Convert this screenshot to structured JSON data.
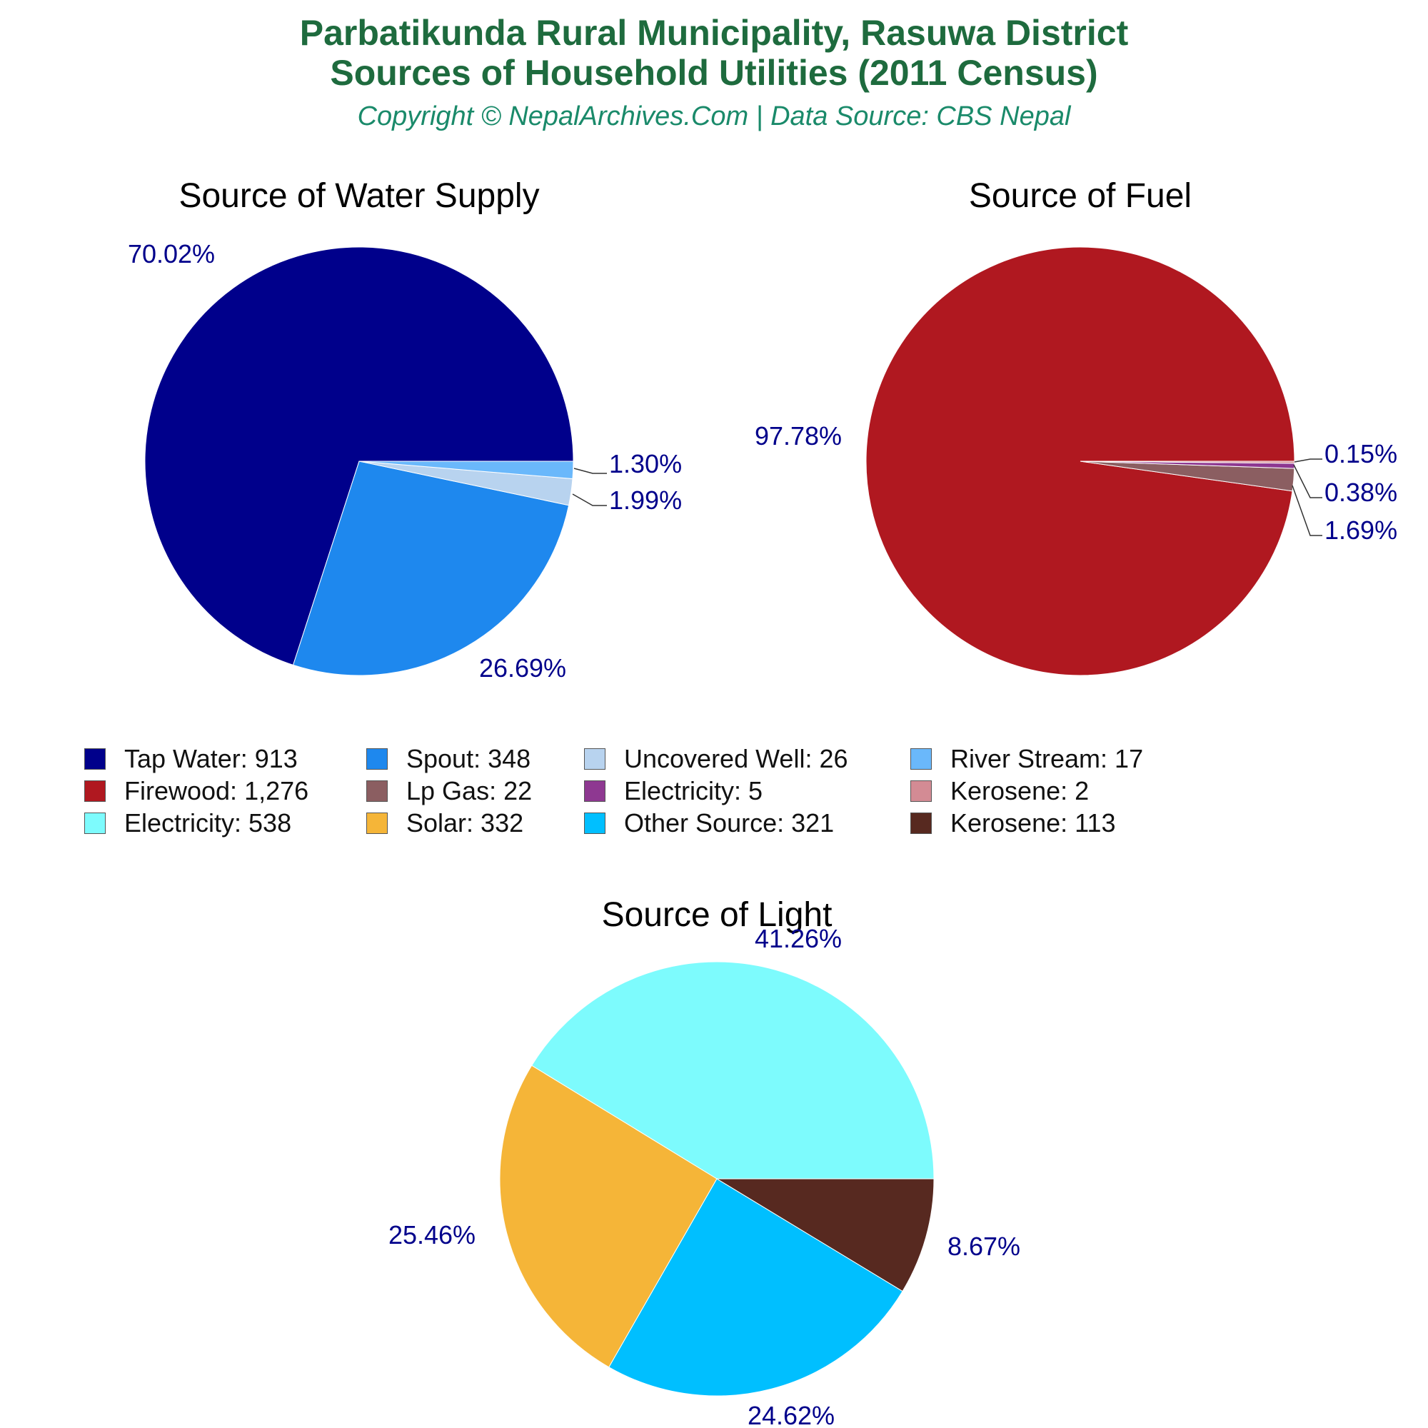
{
  "header": {
    "title_line1": "Parbatikunda Rural Municipality, Rasuwa District",
    "title_line2": "Sources of Household Utilities (2011 Census)",
    "subtitle": "Copyright © NepalArchives.Com | Data Source: CBS Nepal"
  },
  "chart_data": [
    {
      "type": "pie",
      "title": "Source of Water Supply",
      "slices": [
        {
          "label": "Tap Water",
          "value": 913,
          "percent": "70.02%",
          "color": "#00008b"
        },
        {
          "label": "Spout",
          "value": 348,
          "percent": "26.69%",
          "color": "#1e88ee"
        },
        {
          "label": "Uncovered Well",
          "value": 26,
          "percent": "1.99%",
          "color": "#b8d3ef"
        },
        {
          "label": "River Stream",
          "value": 17,
          "percent": "1.30%",
          "color": "#6ab8fb"
        }
      ]
    },
    {
      "type": "pie",
      "title": "Source of Fuel",
      "slices": [
        {
          "label": "Firewood",
          "value": 1276,
          "percent": "97.78%",
          "color": "#b01820"
        },
        {
          "label": "Lp Gas",
          "value": 22,
          "percent": "1.69%",
          "color": "#8b5e61"
        },
        {
          "label": "Electricity",
          "value": 5,
          "percent": "0.38%",
          "color": "#8e3891"
        },
        {
          "label": "Kerosene",
          "value": 2,
          "percent": "0.15%",
          "color": "#d38b94"
        }
      ]
    },
    {
      "type": "pie",
      "title": "Source of Light",
      "slices": [
        {
          "label": "Electricity",
          "value": 538,
          "percent": "41.26%",
          "color": "#7dfbfd"
        },
        {
          "label": "Solar",
          "value": 332,
          "percent": "25.46%",
          "color": "#f5b538"
        },
        {
          "label": "Other Source",
          "value": 321,
          "percent": "24.62%",
          "color": "#00bfff"
        },
        {
          "label": "Kerosene",
          "value": 113,
          "percent": "8.67%",
          "color": "#572920"
        }
      ]
    }
  ],
  "legend": [
    {
      "text": "Tap Water: 913",
      "color": "#00008b"
    },
    {
      "text": "Spout: 348",
      "color": "#1e88ee"
    },
    {
      "text": "Uncovered Well: 26",
      "color": "#b8d3ef"
    },
    {
      "text": "River Stream: 17",
      "color": "#6ab8fb"
    },
    {
      "text": "Firewood: 1,276",
      "color": "#b01820"
    },
    {
      "text": "Lp Gas: 22",
      "color": "#8b5e61"
    },
    {
      "text": "Electricity: 5",
      "color": "#8e3891"
    },
    {
      "text": "Kerosene: 2",
      "color": "#d38b94"
    },
    {
      "text": "Electricity: 538",
      "color": "#7dfbfd"
    },
    {
      "text": "Solar: 332",
      "color": "#f5b538"
    },
    {
      "text": "Other Source: 321",
      "color": "#00bfff"
    },
    {
      "text": "Kerosene: 113",
      "color": "#572920"
    }
  ],
  "colors": {
    "title": "#1e6b3e",
    "subtitle": "#1a8a6a",
    "percent_label": "#00008b"
  }
}
